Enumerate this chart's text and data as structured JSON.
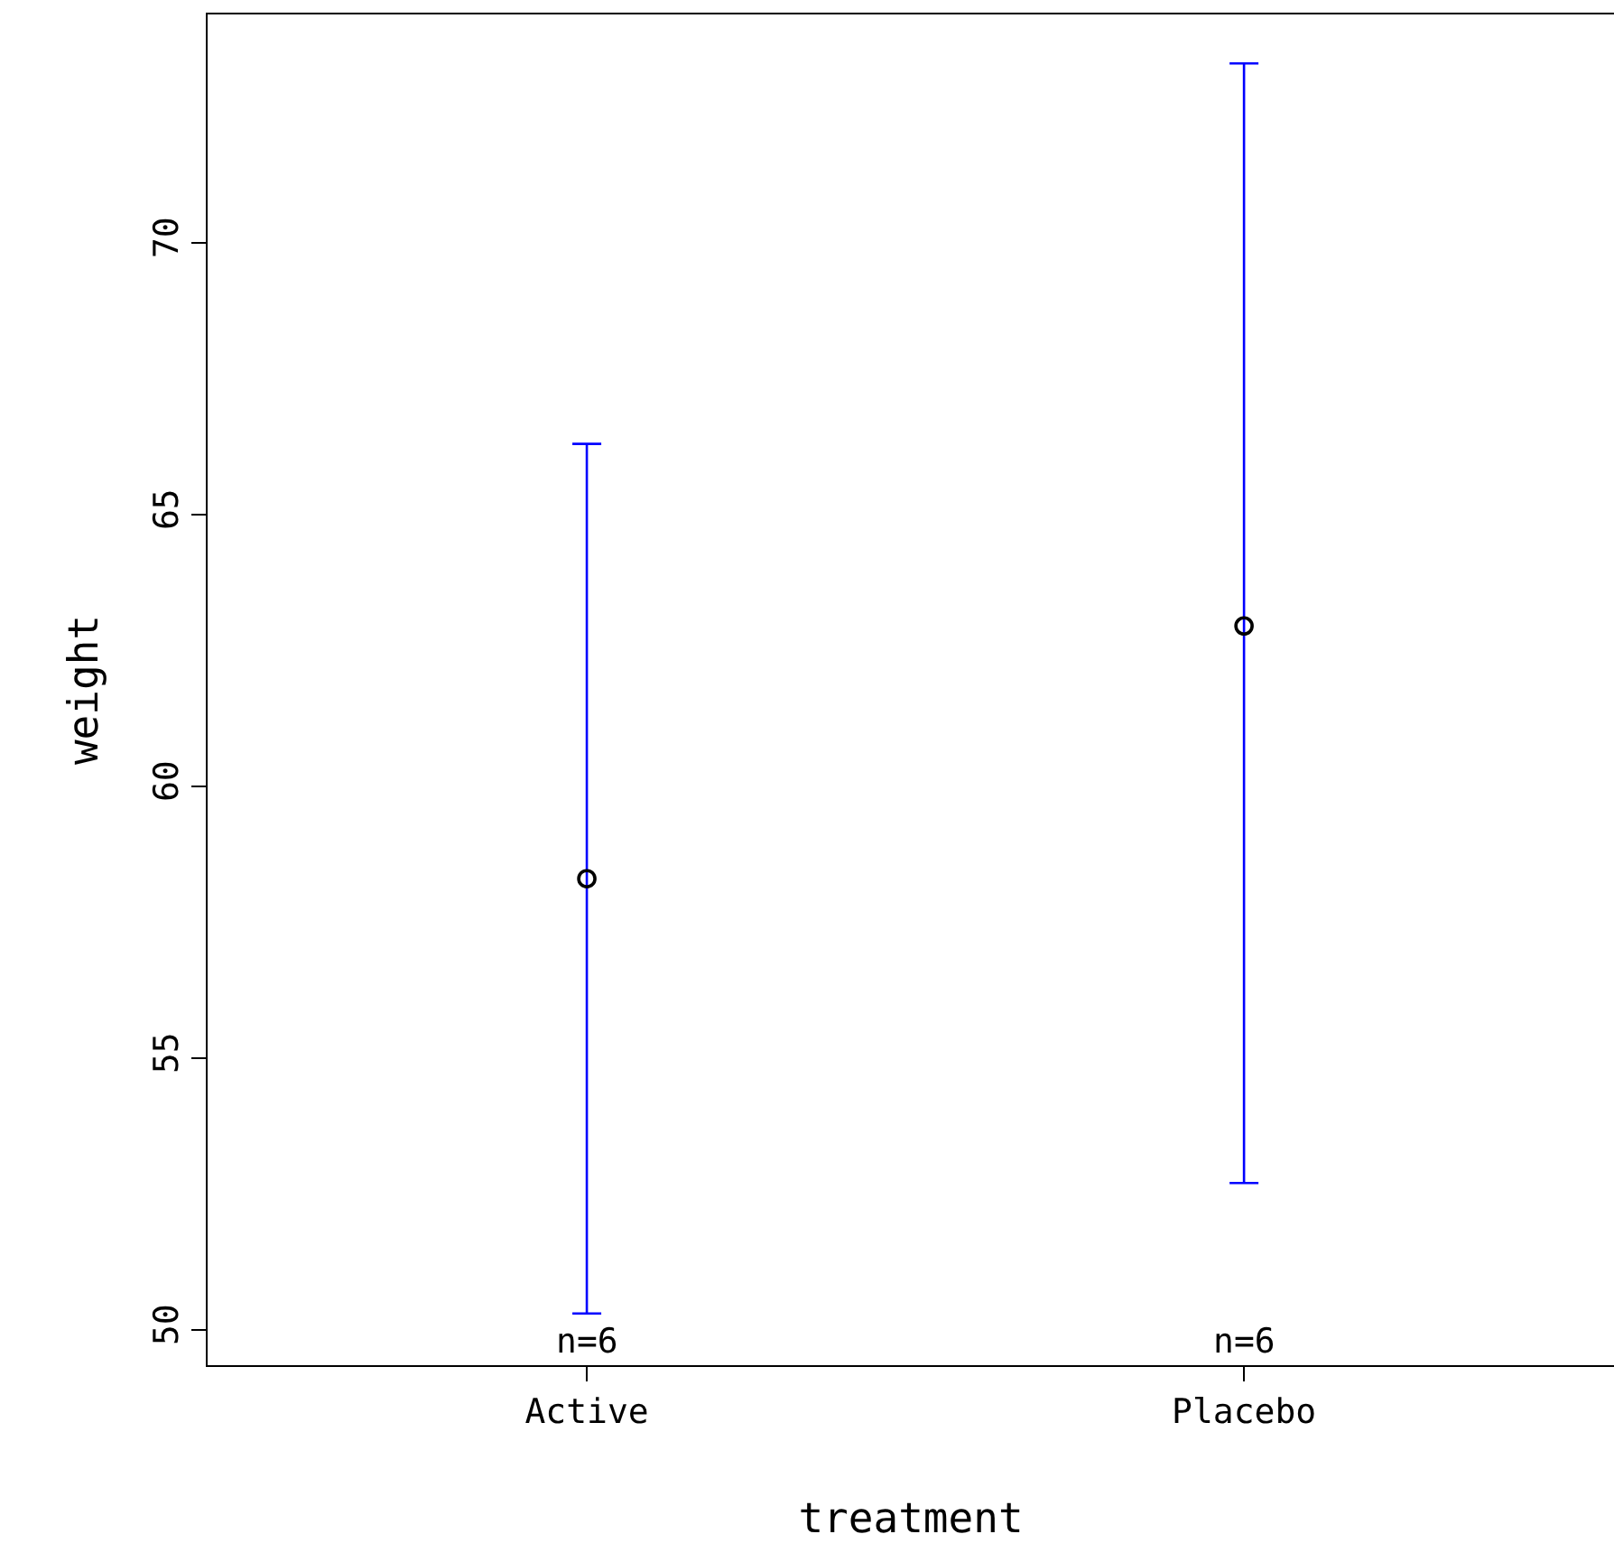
{
  "chart_data": {
    "type": "scatter",
    "xlabel": "treatment",
    "ylabel": "weight",
    "categories": [
      "Active",
      "Placebo"
    ],
    "series": [
      {
        "color": "#000000",
        "values": [
          58.3,
          62.95
        ],
        "errors": [
          [
            50.3,
            66.3
          ],
          [
            52.7,
            73.3
          ]
        ]
      }
    ],
    "ylim": [
      49.35,
      74.2
    ],
    "yticks": [
      50,
      55,
      60,
      65,
      70
    ],
    "marker": "circle",
    "annotations": [
      "n=6",
      "n=6"
    ]
  }
}
